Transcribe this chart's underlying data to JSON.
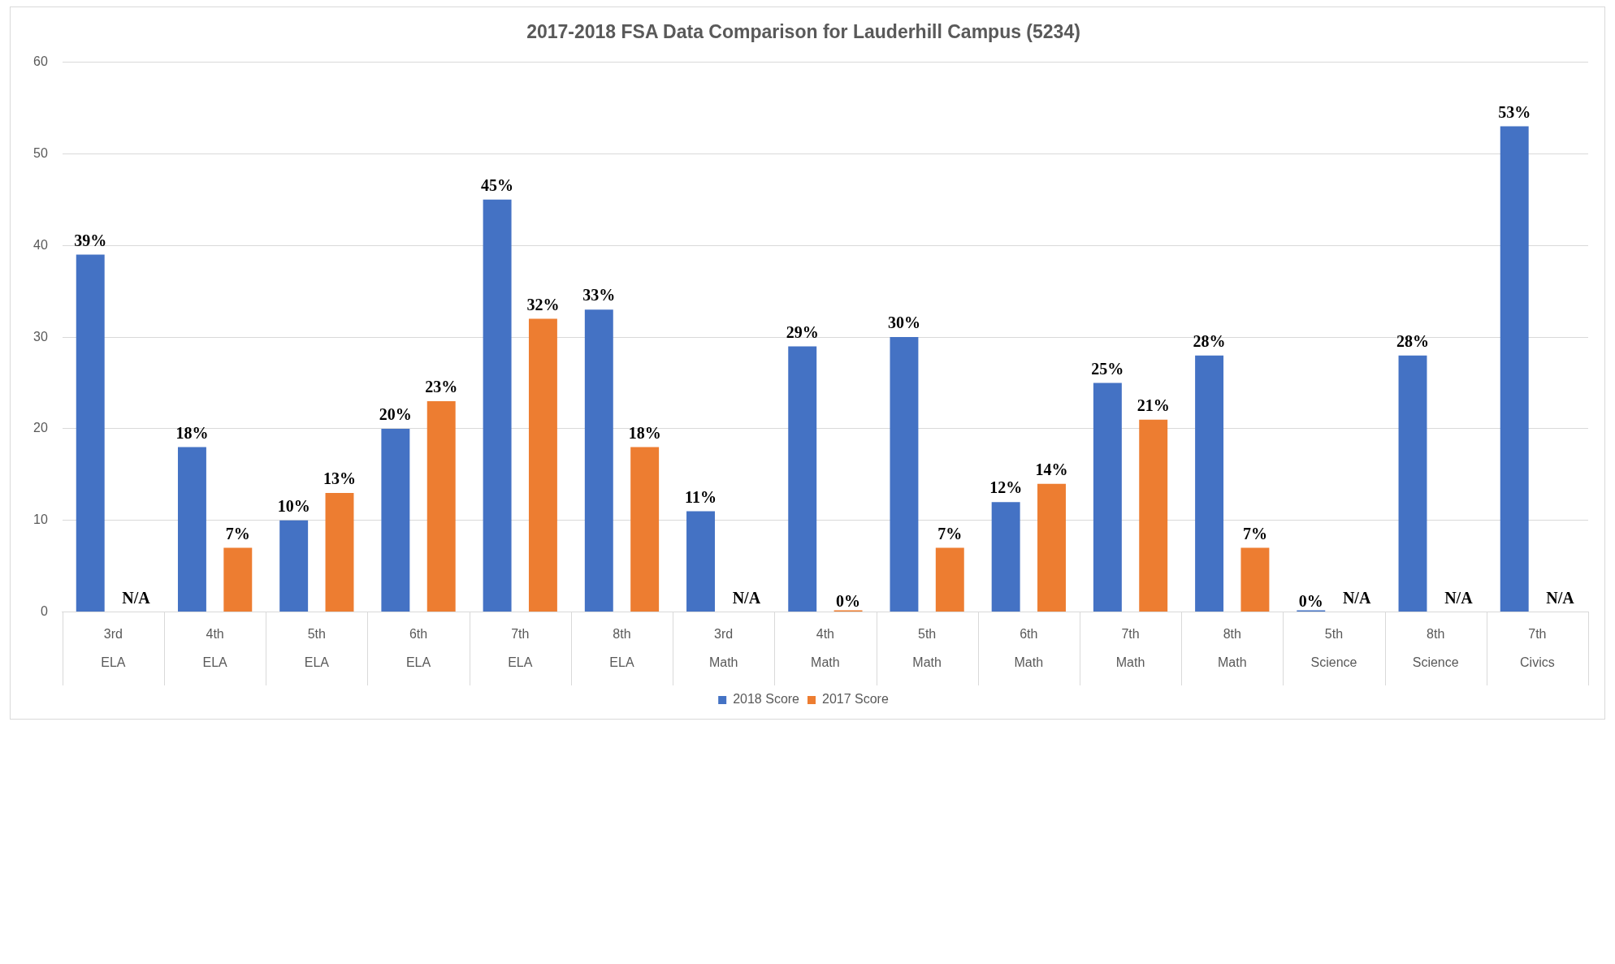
{
  "chart_data": {
    "type": "bar",
    "title": "2017-2018 FSA Data Comparison for Lauderhill Campus (5234)",
    "categories": [
      "3rd ELA",
      "4th ELA",
      "5th ELA",
      "6th ELA",
      "7th ELA",
      "8th ELA",
      "3rd Math",
      "4th Math",
      "5th Math",
      "6th Math",
      "7th Math",
      "8th Math",
      "5th Science",
      "8th Science",
      "7th Civics"
    ],
    "series": [
      {
        "name": "2018 Score",
        "color": "#4472c4",
        "values": [
          39,
          18,
          10,
          20,
          45,
          33,
          11,
          29,
          30,
          12,
          25,
          28,
          0,
          28,
          53
        ],
        "value_labels": [
          "39%",
          "18%",
          "10%",
          "20%",
          "45%",
          "33%",
          "11%",
          "29%",
          "30%",
          "12%",
          "25%",
          "28%",
          "0%",
          "28%",
          "53%"
        ]
      },
      {
        "name": "2017 Score",
        "color": "#ed7d31",
        "values": [
          null,
          7,
          13,
          23,
          32,
          18,
          null,
          0,
          7,
          14,
          21,
          7,
          null,
          null,
          null
        ],
        "value_labels": [
          "N/A",
          "7%",
          "13%",
          "23%",
          "32%",
          "18%",
          "N/A",
          "0%",
          "7%",
          "14%",
          "21%",
          "7%",
          "N/A",
          "N/A",
          "N/A"
        ]
      }
    ],
    "ylim": [
      0,
      60
    ],
    "yticks": [
      0,
      10,
      20,
      30,
      40,
      50,
      60
    ],
    "grid": "y",
    "legend": "bottom"
  }
}
